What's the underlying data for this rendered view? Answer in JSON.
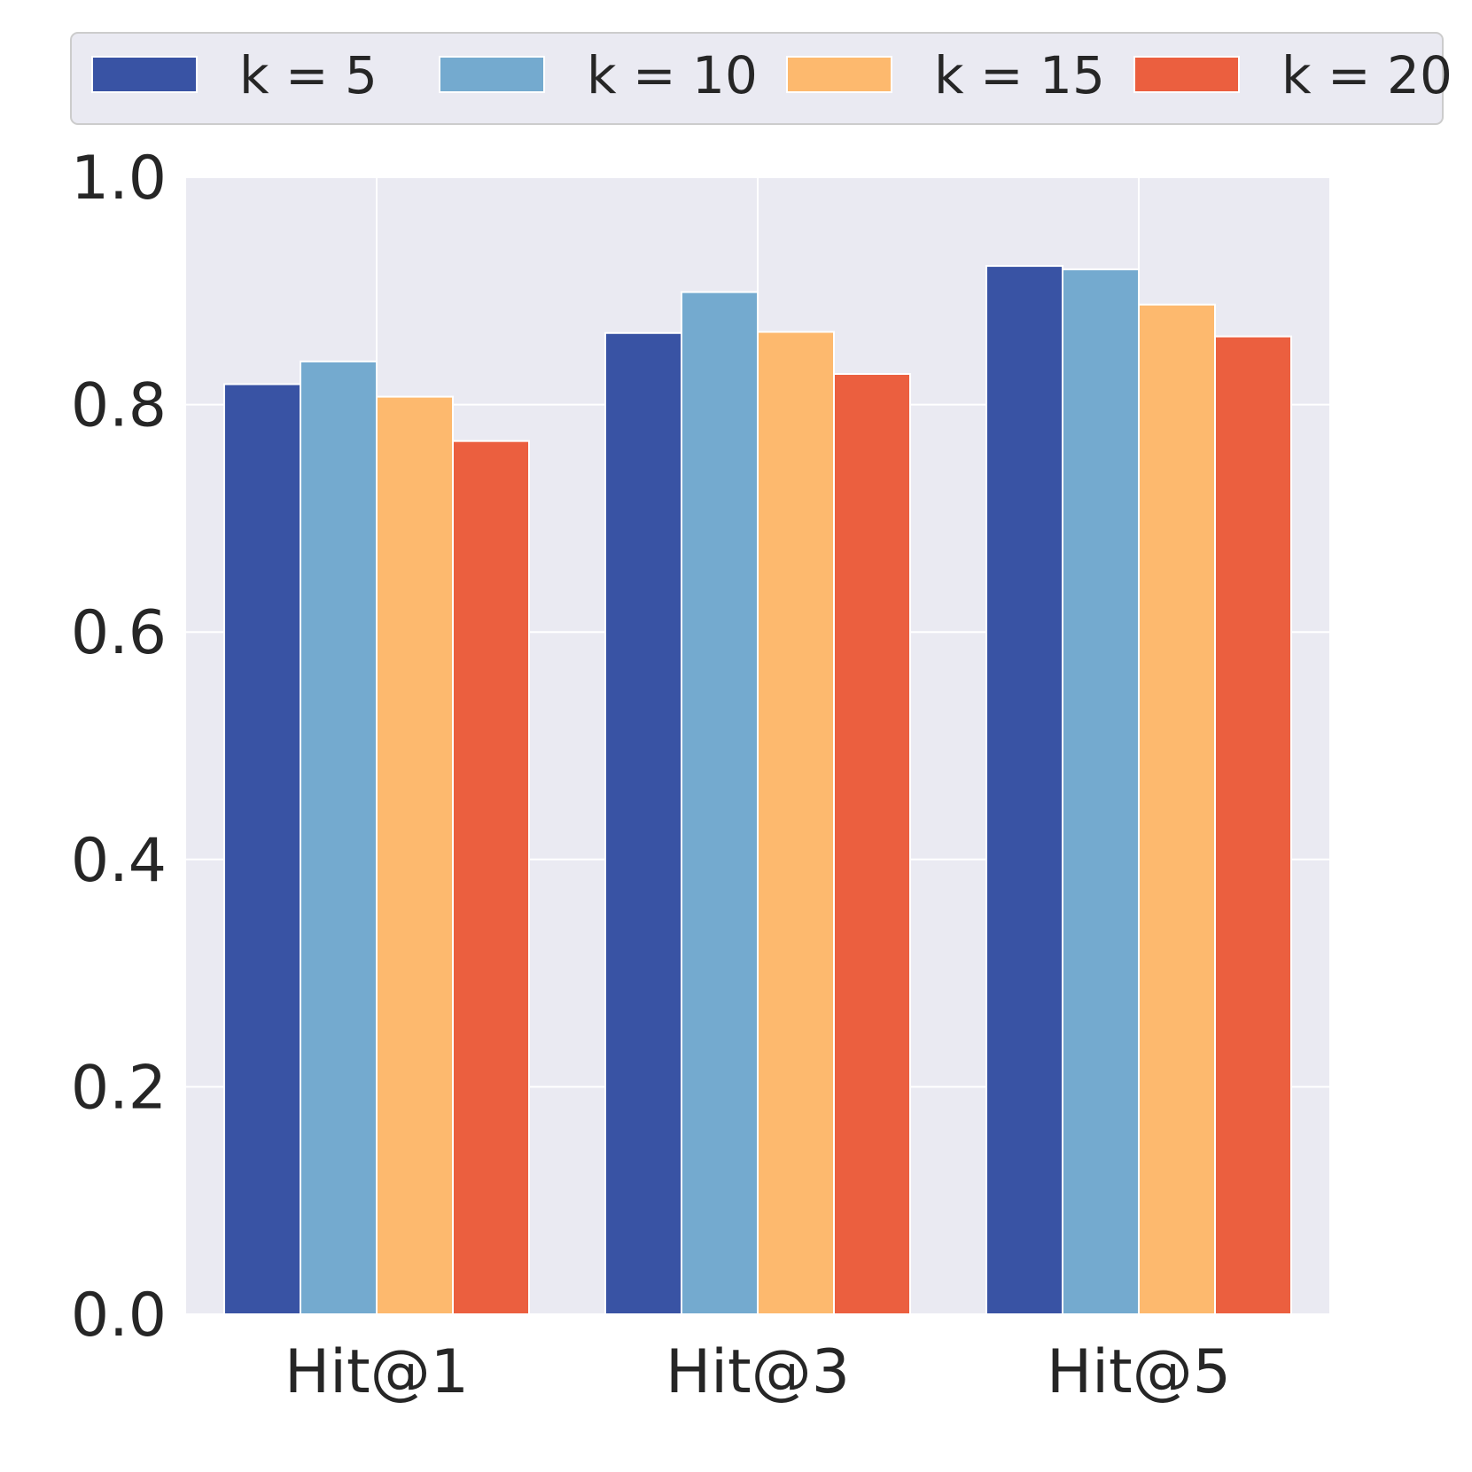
{
  "chart_data": {
    "type": "bar",
    "title": "",
    "xlabel": "",
    "ylabel": "",
    "categories": [
      "Hit@1",
      "Hit@3",
      "Hit@5"
    ],
    "series": [
      {
        "name": "k = 5",
        "color": "#3953A4",
        "values": [
          0.818,
          0.863,
          0.922
        ]
      },
      {
        "name": "k = 10",
        "color": "#74AACF",
        "values": [
          0.838,
          0.899,
          0.919
        ]
      },
      {
        "name": "k = 15",
        "color": "#FDB96E",
        "values": [
          0.807,
          0.864,
          0.888
        ]
      },
      {
        "name": "k = 20",
        "color": "#EB5F3F",
        "values": [
          0.768,
          0.827,
          0.86
        ]
      }
    ],
    "ylim": [
      0,
      1.0
    ],
    "yticks": [
      "0.0",
      "0.2",
      "0.4",
      "0.6",
      "0.8",
      "1.0"
    ],
    "ytick_values": [
      0,
      0.2,
      0.4,
      0.6,
      0.8,
      1.0
    ],
    "grid": true,
    "legend_position": "top"
  }
}
